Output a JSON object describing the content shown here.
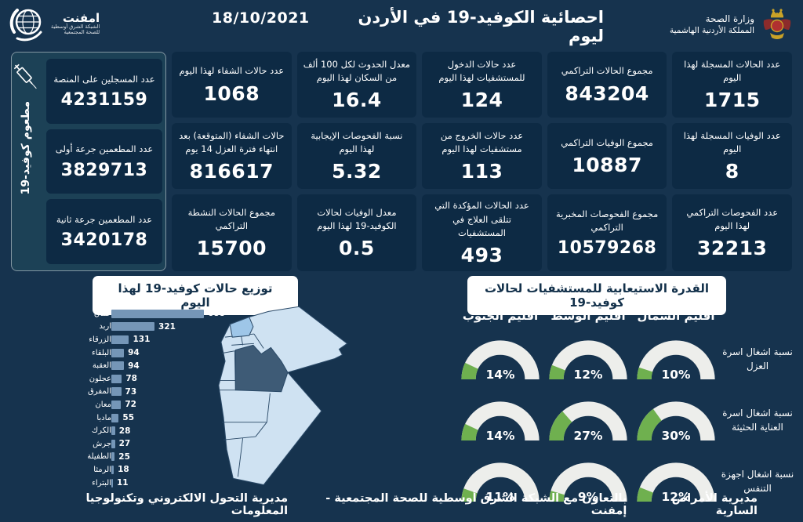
{
  "header": {
    "title": "احصائية الكوفيد-19 في الأردن ليوم",
    "date": "18/10/2021",
    "emphnet_name": "امفنت",
    "emphnet_sub1": "الشبكة الشرق أوسطية",
    "emphnet_sub2": "للصحة المجتمعية",
    "moh_line1": "وزارة الصحة",
    "moh_line2": "المملكة الأردنية الهاشمية"
  },
  "stat_cards": [
    {
      "label": "عدد الحالات المسجلة لهذا اليوم",
      "value": "1715"
    },
    {
      "label": "مجموع الحالات التراكمي",
      "value": "843204"
    },
    {
      "label": "عدد حالات الدخول للمستشفيات لهذا اليوم",
      "value": "124"
    },
    {
      "label": "معدل الحدوث لكل 100 ألف من السكان لهذا اليوم",
      "value": "16.4"
    },
    {
      "label": "عدد حالات الشفاء لهذا اليوم",
      "value": "1068"
    },
    {
      "label": "عدد الوفيات المسجلة لهذا اليوم",
      "value": "8"
    },
    {
      "label": "مجموع الوفيات التراكمي",
      "value": "10887"
    },
    {
      "label": "عدد حالات الخروج من مستشفيات لهذا اليوم",
      "value": "113"
    },
    {
      "label": "نسبة الفحوصات الإيجابية لهذا اليوم",
      "value": "5.32"
    },
    {
      "label": "حالات الشفاء (المتوقعة) بعد انتهاء فترة العزل 14 يوم",
      "value": "816617"
    },
    {
      "label": "عدد الفحوصات التراكمي لهذا اليوم",
      "value": "32213"
    },
    {
      "label": "مجموع الفحوصات المخبرية التراكمي",
      "value": "10579268"
    },
    {
      "label": "عدد الحالات المؤكدة التي تتلقى العلاج في المستشفيات",
      "value": "493"
    },
    {
      "label": "معدل الوفيات لحالات الكوفيد-19 لهذا اليوم",
      "value": "0.5"
    },
    {
      "label": "مجموع الحالات النشطة التراكمي",
      "value": "15700"
    }
  ],
  "vaccination": {
    "side_label": "مطعوم كوفيد-19",
    "cards": [
      {
        "label": "عدد المسجلين على المنصة",
        "value": "4231159"
      },
      {
        "label": "عدد المطعمين جرعة أولى",
        "value": "3829713"
      },
      {
        "label": "عدد المطعمين جرعة ثانية",
        "value": "3420178"
      }
    ]
  },
  "chart_data": [
    {
      "type": "bar",
      "title": "توزيع حالات كوفيد-19 لهذا اليوم",
      "orientation": "horizontal",
      "categories": [
        "عمان",
        "اربد",
        "الزرقاء",
        "البلقاء",
        "العقبة",
        "عجلون",
        "المفرق",
        "معان",
        "مادبا",
        "الكرك",
        "جرش",
        "الطفيلة",
        "الرمثا",
        "البتراء"
      ],
      "values": [
        688,
        321,
        131,
        94,
        94,
        78,
        73,
        72,
        55,
        28,
        27,
        25,
        18,
        11
      ],
      "xlim": [
        0,
        688
      ],
      "value_labels": true
    },
    {
      "type": "gauge-grid",
      "title": "القدرة الاستيعابية للمستشفيات لحالات كوفيد-19",
      "unit": "%",
      "columns": [
        "اقليم الشمال",
        "اقليم الوسط",
        "اقليم الجنوب"
      ],
      "rows": [
        {
          "label": "نسبة اشغال اسرة العزل",
          "values": [
            10,
            12,
            14
          ]
        },
        {
          "label": "نسبة اشغال اسرة العناية الحثيثة",
          "values": [
            30,
            27,
            14
          ]
        },
        {
          "label": "نسبة اشغال اجهزة التنفس",
          "values": [
            12,
            9,
            11
          ]
        }
      ]
    }
  ],
  "map": {
    "highlighted_region_dark": "عمان",
    "highlighted_region_medium": "اربد"
  },
  "footer": {
    "right": "مديرية الأمراض السارية",
    "center": "بالتعاون مع الشبكة الشرق أوسطية للصحة المجتمعية - إمفنت",
    "left": "مديرية التحول الالكتروني وتكنولوجيا المعلومات"
  },
  "colors": {
    "page_bg": "#16334e",
    "card_bg": "#0d2a44",
    "vax_group_bg": "#1c4156",
    "bar": "#7596b7",
    "gauge_track": "#edeeeb",
    "gauge_fill": "#6fb04f",
    "map_light": "#cfe2f2",
    "map_medium": "#9ec6e8",
    "map_dark": "#3e5b76",
    "pill_bg": "#ffffff",
    "pill_text": "#12304a"
  }
}
